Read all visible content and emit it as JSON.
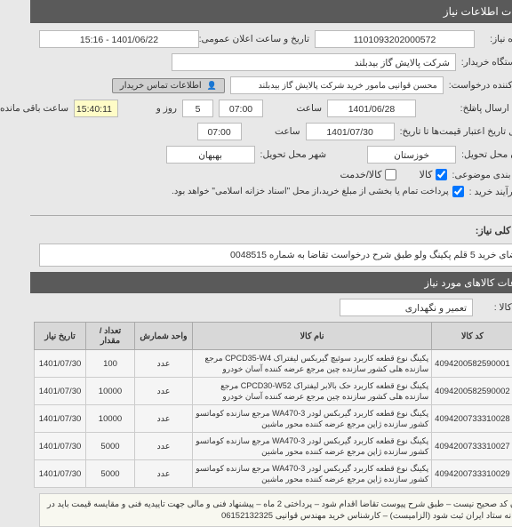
{
  "header": "جزئیات اطلاعات نیاز",
  "fields": {
    "niaz_no_lbl": "شماره نیاز:",
    "niaz_no": "1101093202000572",
    "ann_date_lbl": "تاریخ و ساعت اعلان عمومی:",
    "ann_date": "1401/06/22 - 15:16",
    "buyer_dev_lbl": "نام دستگاه خریدار:",
    "buyer_dev": "شرکت پالایش گاز بیدبلند",
    "req_creator_lbl": "ایجاد کننده درخواست:",
    "req_creator": "محسن قوانیی مامور خرید شرکت پالایش گاز بیدبلند",
    "contact_btn": "اطلاعات تماس خریدار",
    "contact_ico": "👤",
    "resp_dead_lbl": "مهلت ارسال پاسخ:",
    "resp_date": "1401/06/28",
    "saat_lbl": "ساعت",
    "resp_time": "07:00",
    "rem_time": "15:40:11",
    "rooz_lbl": "روز و",
    "days": "5",
    "remain_lbl": "ساعت باقی مانده",
    "cred_lbl": "حداقل تاریخ اعتبار قیمت‌ها تا تاریخ:",
    "cred_date": "1401/07/30",
    "cred_time": "07:00",
    "prov_lbl": "استان محل تحویل:",
    "prov": "خوزستان",
    "city_lbl": "شهر محل تحویل:",
    "city": "بهبهان",
    "cat_lbl": "طبقه بندی موضوعی:",
    "kala_cb": "کالا",
    "khadamat_cb": "کالا/خدمت",
    "proc_lbl": "نوع فرآیند خرید :",
    "proc_txt": "پرداخت تمام یا بخشی از مبلغ خرید،از محل \"اسناد خزانه اسلامی\" خواهد بود.",
    "sharh_title": "شرح کلی نیاز:",
    "sharh_text": "تقاضای خرید 5 قلم پکینگ ولو طبق شرح درخواست تقاضا به شماره 0048515",
    "info_header": "اطلاعات کالاهای مورد نیاز",
    "grp_lbl": "گروه کالا :",
    "grp_val": "تعمیر و نگهداری"
  },
  "table": {
    "cols": [
      "ردیف",
      "کد کالا",
      "نام کالا",
      "واحد شمارش",
      "تعداد / مقدار",
      "تاریخ نیاز"
    ],
    "rows": [
      {
        "r": "1",
        "code": "4094200582590001",
        "name": "پکینگ نوع قطعه کاربرد سوئیچ گیربکس لیفتراک CPCD35-W4 مرجع سازنده هلی کشور سازنده چین مرجع عرضه کننده آسان خودرو",
        "unit": "عدد",
        "qty": "100",
        "date": "1401/07/30"
      },
      {
        "r": "2",
        "code": "4094200582590002",
        "name": "پکینگ نوع قطعه کاربرد حک بالابر لیفتراک CPCD30-W52 مرجع سازنده هلی کشور سازنده چین مرجع عرضه کننده آسان خودرو",
        "unit": "عدد",
        "qty": "10000",
        "date": "1401/07/30"
      },
      {
        "r": "3",
        "code": "4094200733310028",
        "name": "پکینگ نوع قطعه کاربرد گیربکس لودر WA470-3 مرجع سازنده کوماتسو کشور سازنده ژاپن مرجع عرضه کننده محور ماشین",
        "unit": "عدد",
        "qty": "10000",
        "date": "1401/07/30"
      },
      {
        "r": "4",
        "code": "4094200733310027",
        "name": "پکینگ نوع قطعه کاربرد گیربکس لودر WA470-3 مرجع سازنده کوماتسو کشور سازنده ژاپن مرجع عرضه کننده محور ماشین",
        "unit": "عدد",
        "qty": "5000",
        "date": "1401/07/30"
      },
      {
        "r": "5",
        "code": "4094200733310029",
        "name": "پکینگ نوع قطعه کاربرد گیربکس لودر WA470-3 مرجع سازنده کوماتسو کشور سازنده ژاپن مرجع عرضه کننده محور ماشین",
        "unit": "عدد",
        "qty": "5000",
        "date": "1401/07/30"
      }
    ]
  },
  "note": "ایران کد صحیح نیست – طبق شرح پیوست تقاضا اقدام شود – پرداختی 2 ماه – پیشنهاد فنی و مالی جهت تاییدیه فنی و مقایسه قیمت باید در سامانه ستاد ایران ثبت شود (الزامیست) – کارشناس خرید مهندس قوانیی 06152132325"
}
